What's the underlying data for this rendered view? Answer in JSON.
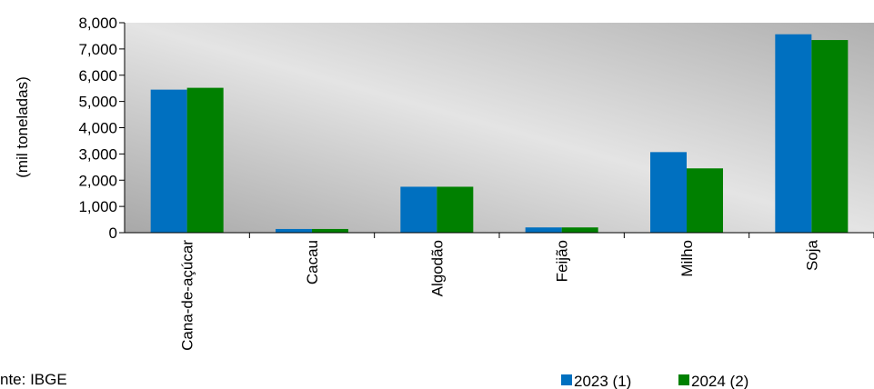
{
  "chart_data": {
    "type": "bar",
    "ylabel": "(mil toneladas)",
    "categories": [
      "Cana-de-açúcar",
      "Cacau",
      "Algodão",
      "Feijão",
      "Milho",
      "Soja"
    ],
    "series": [
      {
        "name": "2023 (1)",
        "color": "#0070C0",
        "values": [
          5450,
          140,
          1750,
          200,
          3070,
          7560
        ]
      },
      {
        "name": "2024 (2)",
        "color": "#008000",
        "values": [
          5520,
          140,
          1750,
          200,
          2450,
          7340
        ]
      }
    ],
    "ylim": [
      0,
      8000
    ],
    "yticks": [
      "0",
      "1,000",
      "2,000",
      "3,000",
      "4,000",
      "5,000",
      "6,000",
      "7,000",
      "8,000"
    ],
    "legend": "bottom-right",
    "grid": false
  },
  "source_note": "nte: IBGE"
}
